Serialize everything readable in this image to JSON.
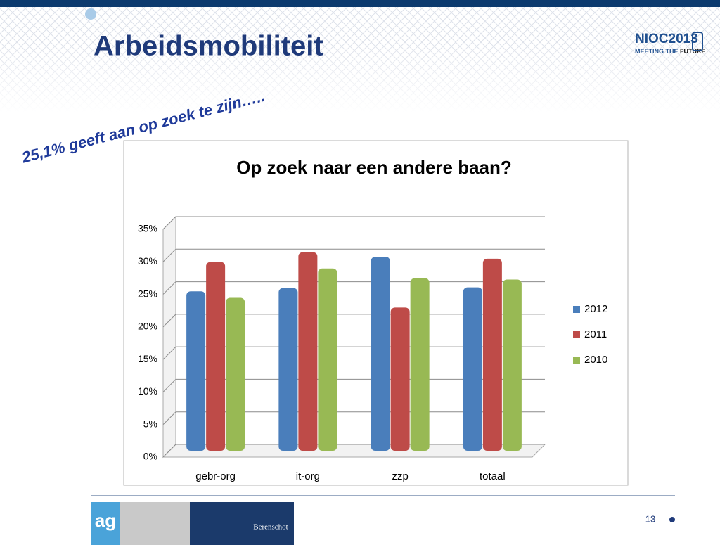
{
  "header": {
    "title": "Arbeidsmobiliteit",
    "logo_main": "NIOC2013",
    "logo_sub_1": "MEETING THE",
    "logo_sub_2": "FUTURE"
  },
  "subtitle": "25,1% geeft aan op zoek te zijn…..",
  "footer": {
    "brand": "Berenschot",
    "logo": "ag",
    "page": "13"
  },
  "chart_data": {
    "type": "bar",
    "title": "Op zoek naar een andere baan?",
    "categories": [
      "gebr-org",
      "it-org",
      "zzp",
      "totaal"
    ],
    "series": [
      {
        "name": "2012",
        "color": "#4a7ebb",
        "values": [
          24.5,
          25,
          29.8,
          25.1
        ]
      },
      {
        "name": "2011",
        "color": "#be4b48",
        "values": [
          29,
          30.5,
          22,
          29.5
        ]
      },
      {
        "name": "2010",
        "color": "#98b954",
        "values": [
          23.5,
          28,
          26.5,
          26.3
        ]
      }
    ],
    "ylim": [
      0,
      35
    ],
    "yticks": [
      {
        "value": 0,
        "label": "0%"
      },
      {
        "value": 5,
        "label": "5%"
      },
      {
        "value": 10,
        "label": "10%"
      },
      {
        "value": 15,
        "label": "15%"
      },
      {
        "value": 20,
        "label": "20%"
      },
      {
        "value": 25,
        "label": "25%"
      },
      {
        "value": 30,
        "label": "30%"
      },
      {
        "value": 35,
        "label": "35%"
      }
    ],
    "grid": true,
    "legend": "right"
  }
}
